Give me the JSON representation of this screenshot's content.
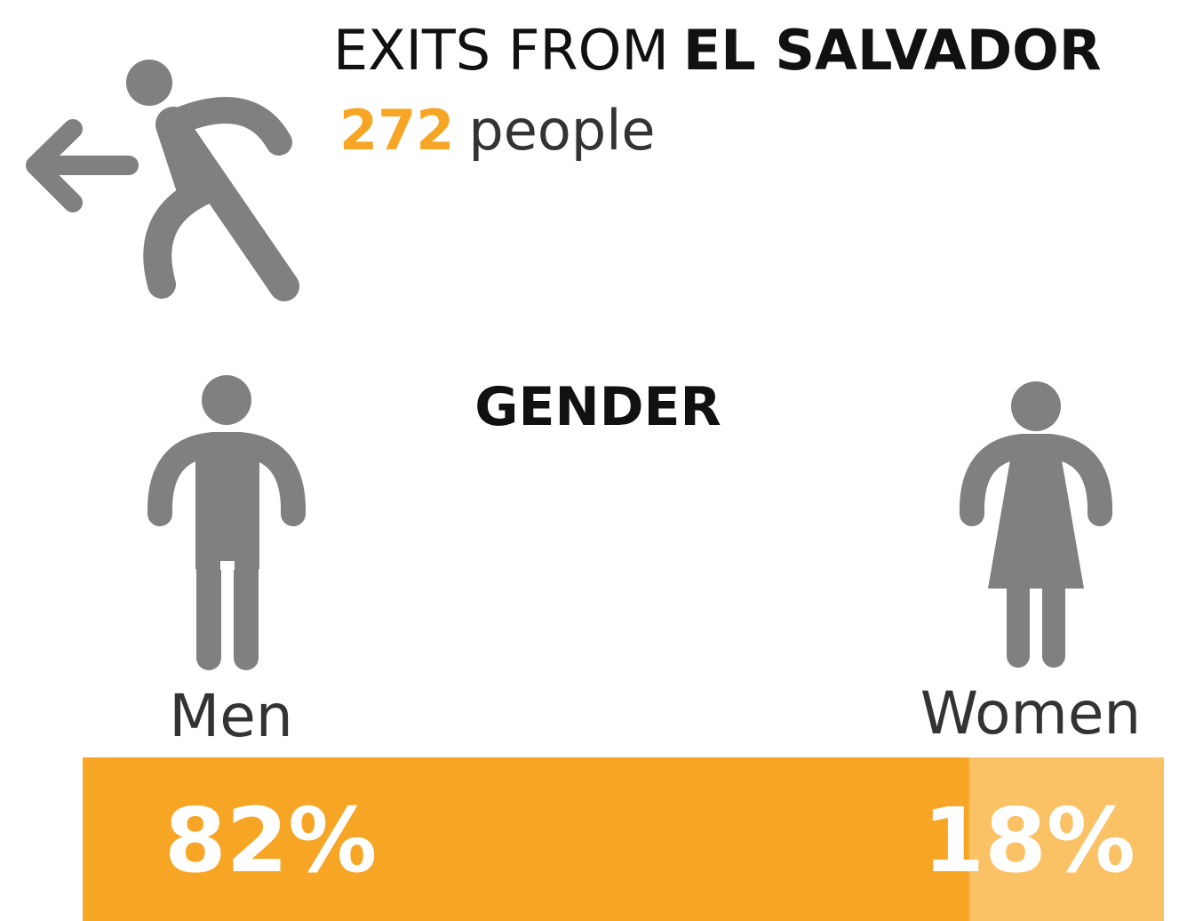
{
  "chart_data": {
    "type": "stacked-bar",
    "title_prefix": "EXITS FROM",
    "title_emphasis": "EL SALVADOR",
    "total": 272,
    "total_unit": "people",
    "subtitle": "GENDER",
    "categories": [
      "Men",
      "Women"
    ],
    "values": [
      82,
      18
    ],
    "value_labels": [
      "82%",
      "18%"
    ],
    "colors": [
      "#f7a525",
      "#fac165"
    ],
    "xlim": [
      0,
      100
    ]
  }
}
